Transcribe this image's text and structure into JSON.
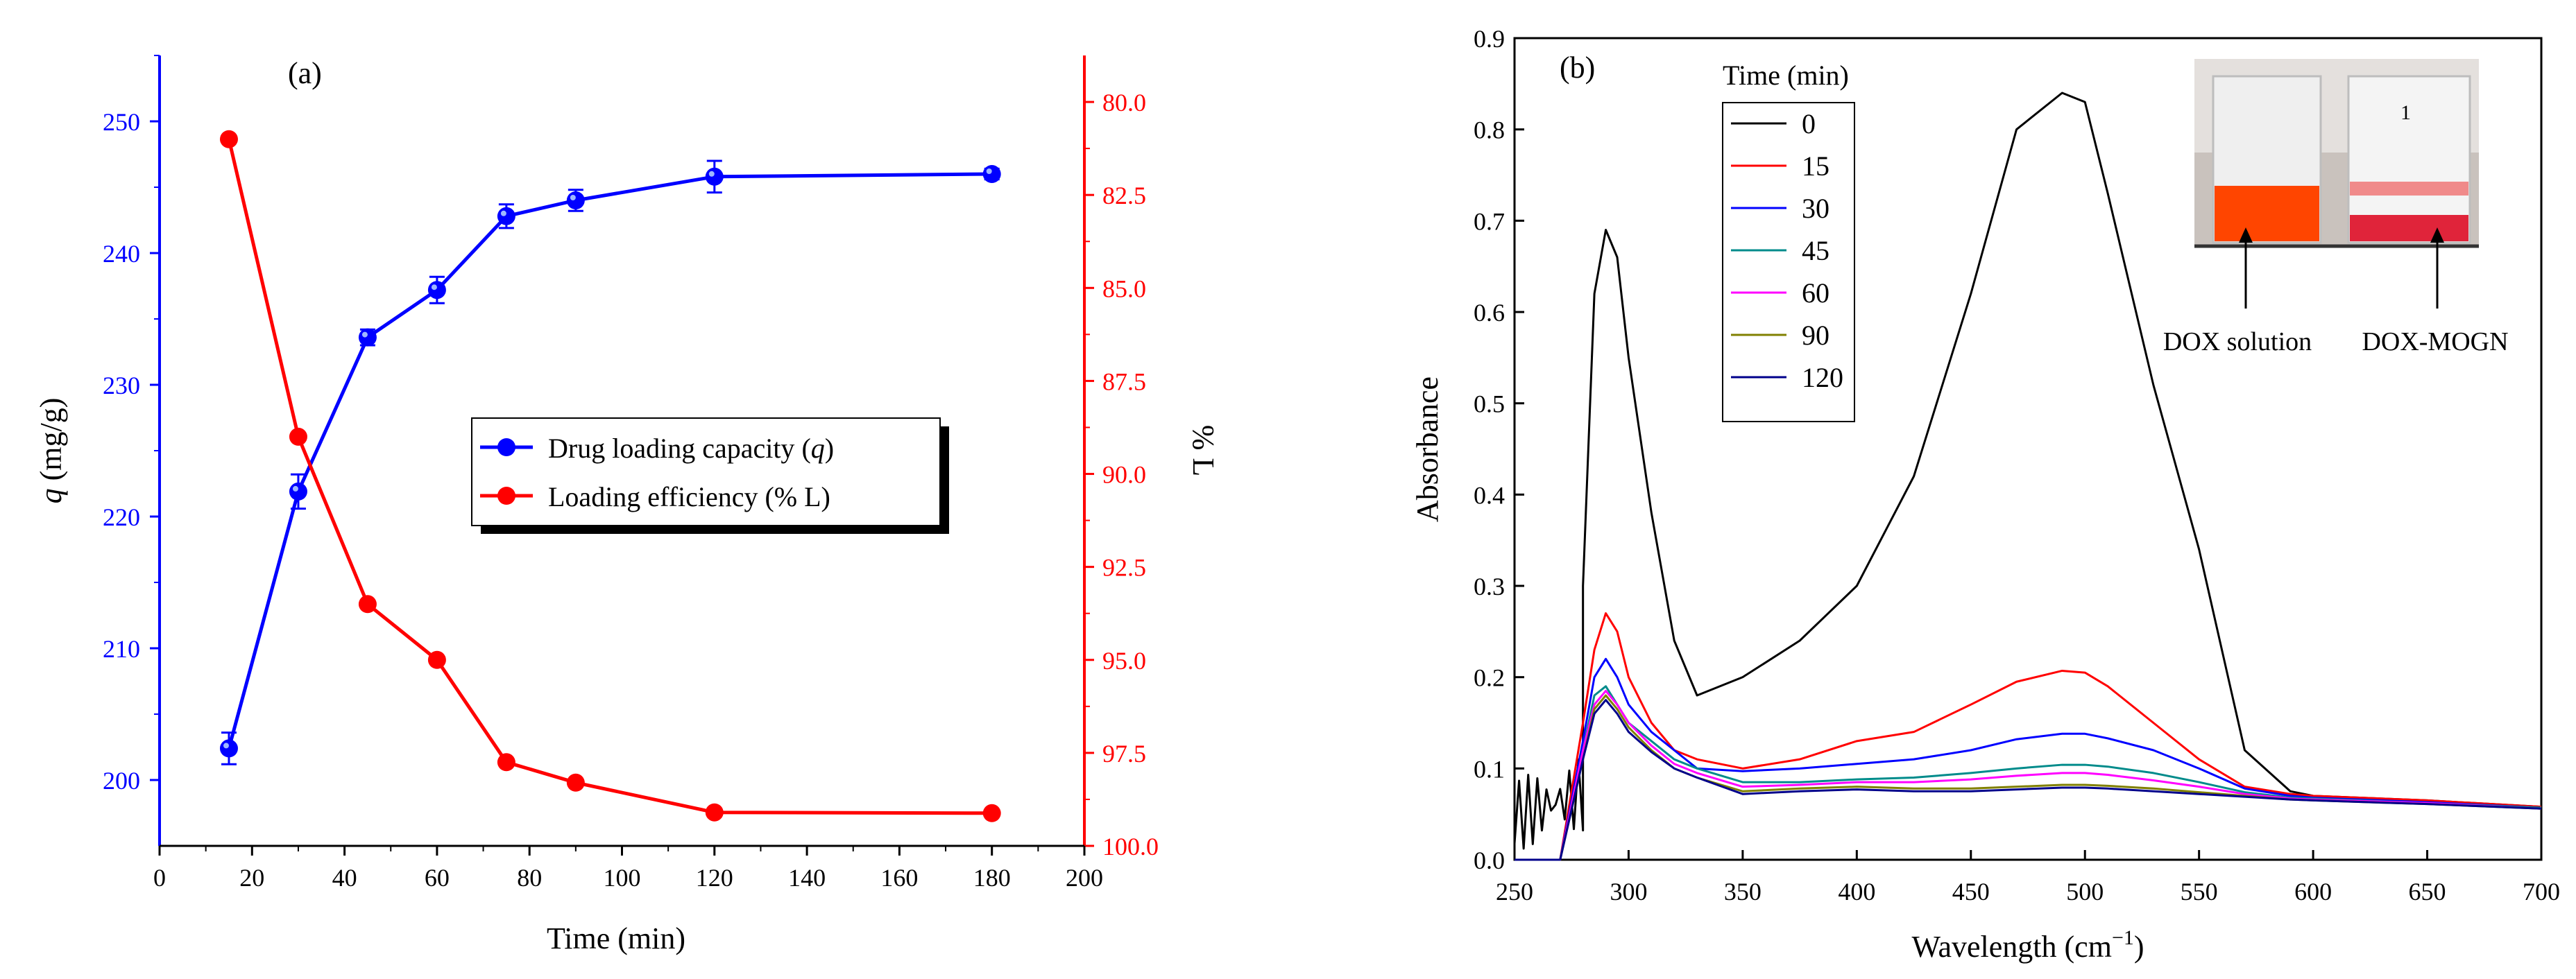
{
  "panels": [
    {
      "panel_label": "(a)",
      "chart_data": {
        "type": "line",
        "x": [
          15,
          30,
          45,
          60,
          75,
          90,
          120,
          180
        ],
        "xlabel": "Time (min)",
        "xlim": [
          0,
          200
        ],
        "xticks": [
          0,
          20,
          40,
          60,
          80,
          100,
          120,
          140,
          160,
          180,
          200
        ],
        "left_axis": {
          "label_italic": "q",
          "label_rest": " (mg/g)",
          "color": "#0000ff",
          "lim": [
            195,
            255
          ],
          "ticks": [
            200,
            210,
            220,
            230,
            240,
            250
          ]
        },
        "right_axis": {
          "label": "% L",
          "color": "#ff0000",
          "lim": [
            78.75,
            100
          ],
          "inverted": true,
          "ticks": [
            80.0,
            82.5,
            85.0,
            87.5,
            90.0,
            92.5,
            95.0,
            97.5,
            100.0
          ],
          "tick_labels": [
            "80.0",
            "82.5",
            "85.0",
            "87.5",
            "90.0",
            "92.5",
            "95.0",
            "97.5",
            "100.0"
          ]
        },
        "series": [
          {
            "name": "Drug loading capacity",
            "name_italic": "q",
            "axis": "left",
            "color": "#0000ff",
            "values": [
              202.4,
              221.9,
              233.6,
              237.2,
              242.8,
              244.0,
              245.8,
              246.0
            ],
            "error": [
              1.2,
              1.3,
              0.6,
              1.0,
              0.9,
              0.8,
              1.2,
              0.4
            ]
          },
          {
            "name": "Loading efficiency (% L)",
            "axis": "right",
            "color": "#ff0000",
            "values": [
              81.0,
              89.0,
              93.5,
              95.0,
              97.75,
              98.3,
              99.1,
              99.12
            ]
          }
        ],
        "legend_position": "center-right"
      }
    },
    {
      "panel_label": "(b)",
      "chart_data": {
        "type": "line",
        "xlabel_text": "Wavelength  (cm",
        "xlabel_sup": "−1",
        "xlabel_end": ")",
        "ylabel": "Absorbance",
        "xlim": [
          250,
          700
        ],
        "ylim": [
          0,
          0.9
        ],
        "xticks": [
          250,
          300,
          350,
          400,
          450,
          500,
          550,
          600,
          650,
          700
        ],
        "yticks": [
          0.0,
          0.1,
          0.2,
          0.3,
          0.4,
          0.5,
          0.6,
          0.7,
          0.8,
          0.9
        ],
        "ytick_labels": [
          "0.0",
          "0.1",
          "0.2",
          "0.3",
          "0.4",
          "0.5",
          "0.6",
          "0.7",
          "0.8",
          "0.9"
        ],
        "legend_title": "Time (min)",
        "x": [
          250,
          270,
          280,
          285,
          290,
          295,
          300,
          310,
          320,
          330,
          350,
          375,
          400,
          425,
          450,
          470,
          490,
          500,
          510,
          530,
          550,
          570,
          590,
          600,
          650,
          700
        ],
        "series": [
          {
            "name": "0",
            "color": "#000000",
            "values": [
              0.08,
              0.06,
              0.3,
              0.62,
              0.69,
              0.66,
              0.55,
              0.38,
              0.24,
              0.18,
              0.2,
              0.24,
              0.3,
              0.42,
              0.62,
              0.8,
              0.84,
              0.83,
              0.73,
              0.52,
              0.34,
              0.12,
              0.075,
              0.07,
              0.065,
              0.058
            ]
          },
          {
            "name": "15",
            "color": "#ff0000",
            "values": [
              0.0,
              0.0,
              0.15,
              0.23,
              0.27,
              0.25,
              0.2,
              0.15,
              0.12,
              0.11,
              0.1,
              0.11,
              0.13,
              0.14,
              0.17,
              0.195,
              0.207,
              0.205,
              0.19,
              0.15,
              0.11,
              0.08,
              0.072,
              0.07,
              0.065,
              0.058
            ]
          },
          {
            "name": "30",
            "color": "#0000ff",
            "values": [
              0.0,
              0.0,
              0.13,
              0.2,
              0.22,
              0.2,
              0.17,
              0.14,
              0.12,
              0.1,
              0.097,
              0.1,
              0.105,
              0.11,
              0.12,
              0.132,
              0.138,
              0.138,
              0.133,
              0.12,
              0.1,
              0.078,
              0.07,
              0.068,
              0.063,
              0.057
            ]
          },
          {
            "name": "45",
            "color": "#008b8b",
            "values": [
              0.0,
              0.0,
              0.12,
              0.18,
              0.19,
              0.17,
              0.15,
              0.13,
              0.11,
              0.1,
              0.085,
              0.085,
              0.088,
              0.09,
              0.095,
              0.1,
              0.104,
              0.104,
              0.102,
              0.095,
              0.085,
              0.074,
              0.068,
              0.067,
              0.062,
              0.057
            ]
          },
          {
            "name": "60",
            "color": "#ff00ff",
            "values": [
              0.0,
              0.0,
              0.12,
              0.17,
              0.185,
              0.17,
              0.15,
              0.125,
              0.105,
              0.095,
              0.08,
              0.082,
              0.085,
              0.085,
              0.088,
              0.092,
              0.095,
              0.095,
              0.093,
              0.087,
              0.08,
              0.072,
              0.067,
              0.066,
              0.062,
              0.056
            ]
          },
          {
            "name": "90",
            "color": "#808000",
            "values": [
              0.0,
              0.0,
              0.11,
              0.165,
              0.18,
              0.165,
              0.145,
              0.12,
              0.1,
              0.09,
              0.075,
              0.078,
              0.08,
              0.078,
              0.078,
              0.08,
              0.082,
              0.082,
              0.081,
              0.078,
              0.074,
              0.07,
              0.066,
              0.065,
              0.061,
              0.056
            ]
          },
          {
            "name": "120",
            "color": "#00008b",
            "values": [
              0.0,
              0.0,
              0.11,
              0.16,
              0.175,
              0.16,
              0.14,
              0.118,
              0.1,
              0.09,
              0.072,
              0.075,
              0.077,
              0.075,
              0.075,
              0.077,
              0.079,
              0.079,
              0.078,
              0.075,
              0.072,
              0.069,
              0.066,
              0.065,
              0.061,
              0.056
            ]
          }
        ],
        "inset_photo": {
          "labels": [
            "DOX solution",
            "DOX-MOGN"
          ],
          "beaker_mark": "1",
          "colors": {
            "dox_solution": "#ff4500",
            "dox_mogn_band": "#e0243a",
            "background": "#c9c2bd"
          }
        }
      }
    }
  ]
}
